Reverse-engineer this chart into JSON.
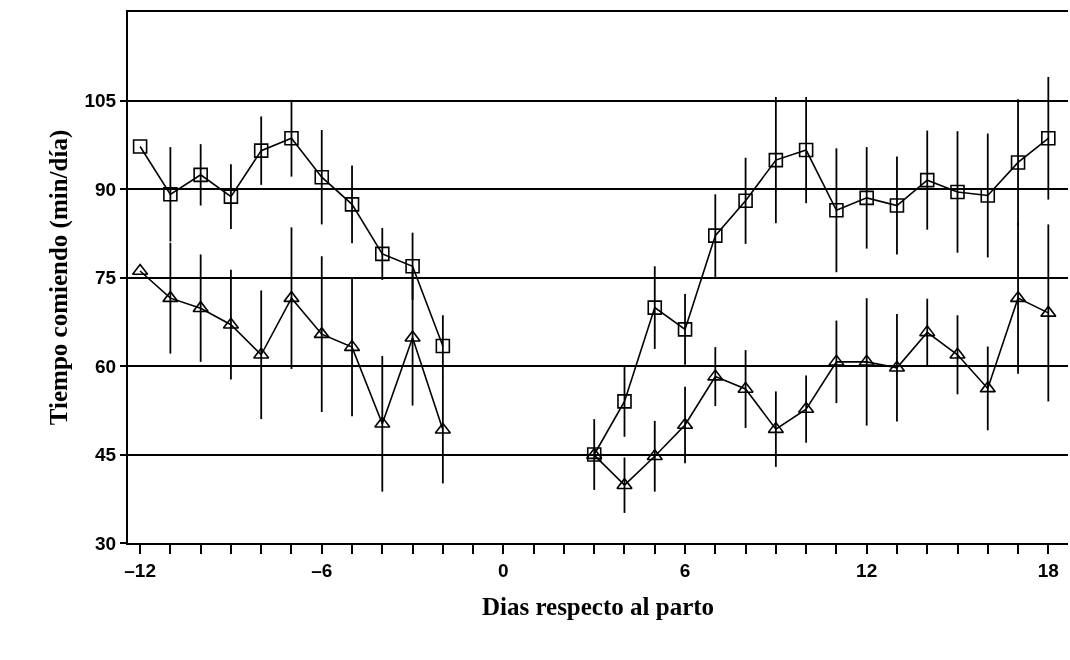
{
  "chart_data": {
    "type": "line",
    "xlabel": "Dias respecto al parto",
    "ylabel": "Tiempo comiendo (min/día)",
    "x": [
      -12,
      -11,
      -10,
      -9,
      -8,
      -7,
      -6,
      -5,
      -4,
      -3,
      -2,
      -1,
      0,
      1,
      2,
      3,
      4,
      5,
      6,
      7,
      8,
      9,
      10,
      11,
      12,
      13,
      14,
      15,
      16,
      17,
      18
    ],
    "series": [
      {
        "color": "#000000",
        "marker": "square",
        "values": [
          97.2,
          89.1,
          92.4,
          88.7,
          96.5,
          98.6,
          92.0,
          87.4,
          79.0,
          76.9,
          63.4,
          null,
          null,
          null,
          null,
          45.0,
          54.0,
          69.9,
          66.2,
          82.1,
          88.0,
          94.9,
          96.6,
          86.4,
          88.5,
          87.2,
          91.5,
          89.5,
          88.9,
          94.5,
          98.6
        ],
        "errors": [
          null,
          8,
          5.2,
          5.5,
          5.8,
          6.5,
          8,
          6.6,
          4.4,
          5.7,
          5.2,
          null,
          null,
          null,
          null,
          6,
          6,
          7,
          6,
          7,
          7.3,
          10.7,
          9,
          10.5,
          8.6,
          8.3,
          8.4,
          10.3,
          10.5,
          10.7,
          10.4
        ]
      },
      {
        "color": "#000000",
        "marker": "triangle",
        "values": [
          76.1,
          71.5,
          69.8,
          67.0,
          61.9,
          71.5,
          65.4,
          63.2,
          50.2,
          64.8,
          49.2,
          null,
          null,
          null,
          null,
          44.9,
          39.8,
          44.7,
          50.0,
          58.2,
          56.1,
          49.3,
          52.7,
          60.7,
          60.7,
          59.7,
          65.7,
          61.9,
          56.2,
          71.5,
          69.0
        ],
        "errors": [
          null,
          9.4,
          9.1,
          9.3,
          10.9,
          12,
          13.2,
          11.7,
          11.5,
          11.5,
          9.1,
          null,
          null,
          null,
          null,
          null,
          4.7,
          6,
          6.5,
          5,
          6.6,
          6.4,
          5.7,
          7,
          10.8,
          9.1,
          5.7,
          6.7,
          7.1,
          12.8,
          15
        ]
      }
    ],
    "xlim": [
      -12.4,
      18.65
    ],
    "ylim": [
      30,
      120
    ],
    "xticks": [
      {
        "value": -12,
        "label": "–12"
      },
      {
        "value": -11,
        "label": null
      },
      {
        "value": -10,
        "label": null
      },
      {
        "value": -9,
        "label": null
      },
      {
        "value": -8,
        "label": null
      },
      {
        "value": -7,
        "label": null
      },
      {
        "value": -6,
        "label": "–6"
      },
      {
        "value": -5,
        "label": null
      },
      {
        "value": -4,
        "label": null
      },
      {
        "value": -3,
        "label": null
      },
      {
        "value": -2,
        "label": null
      },
      {
        "value": -1,
        "label": null
      },
      0,
      {
        "value": 1,
        "label": null
      },
      {
        "value": 2,
        "label": null
      },
      {
        "value": 3,
        "label": null
      },
      {
        "value": 4,
        "label": null
      },
      {
        "value": 5,
        "label": null
      },
      6,
      {
        "value": 7,
        "label": null
      },
      {
        "value": 8,
        "label": null
      },
      {
        "value": 9,
        "label": null
      },
      {
        "value": 10,
        "label": null
      },
      {
        "value": 11,
        "label": null
      },
      12,
      {
        "value": 13,
        "label": null
      },
      {
        "value": 14,
        "label": null
      },
      {
        "value": 15,
        "label": null
      },
      {
        "value": 16,
        "label": null
      },
      {
        "value": 17,
        "label": null
      },
      18
    ],
    "yticks": [
      30,
      45,
      60,
      75,
      90,
      105
    ],
    "grid": "y",
    "line_style": "solid"
  }
}
